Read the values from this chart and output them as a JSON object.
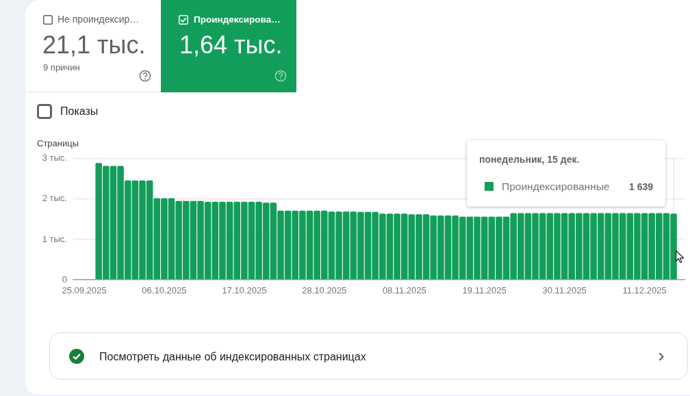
{
  "chart_data": {
    "type": "bar",
    "ylabel": "Страницы",
    "x": [
      "2025-09-27",
      "2025-09-28",
      "2025-09-29",
      "2025-09-30",
      "2025-10-01",
      "2025-10-02",
      "2025-10-03",
      "2025-10-04",
      "2025-10-05",
      "2025-10-06",
      "2025-10-07",
      "2025-10-08",
      "2025-10-09",
      "2025-10-10",
      "2025-10-11",
      "2025-10-12",
      "2025-10-13",
      "2025-10-14",
      "2025-10-15",
      "2025-10-16",
      "2025-10-17",
      "2025-10-18",
      "2025-10-19",
      "2025-10-20",
      "2025-10-21",
      "2025-10-22",
      "2025-10-23",
      "2025-10-24",
      "2025-10-25",
      "2025-10-26",
      "2025-10-27",
      "2025-10-28",
      "2025-10-29",
      "2025-10-30",
      "2025-10-31",
      "2025-11-01",
      "2025-11-02",
      "2025-11-03",
      "2025-11-04",
      "2025-11-05",
      "2025-11-06",
      "2025-11-07",
      "2025-11-08",
      "2025-11-09",
      "2025-11-10",
      "2025-11-11",
      "2025-11-12",
      "2025-11-13",
      "2025-11-14",
      "2025-11-15",
      "2025-11-16",
      "2025-11-17",
      "2025-11-18",
      "2025-11-19",
      "2025-11-20",
      "2025-11-21",
      "2025-11-22",
      "2025-11-23",
      "2025-11-24",
      "2025-11-25",
      "2025-11-26",
      "2025-11-27",
      "2025-11-28",
      "2025-11-29",
      "2025-11-30",
      "2025-12-01",
      "2025-12-02",
      "2025-12-03",
      "2025-12-04",
      "2025-12-05",
      "2025-12-06",
      "2025-12-07",
      "2025-12-08",
      "2025-12-09",
      "2025-12-10",
      "2025-12-11",
      "2025-12-12",
      "2025-12-13",
      "2025-12-14",
      "2025-12-15"
    ],
    "series": [
      {
        "name": "Проиндексированные",
        "color": "#129e5a",
        "values": [
          2.89,
          2.82,
          2.82,
          2.82,
          2.46,
          2.46,
          2.46,
          2.46,
          2.02,
          2.02,
          2.02,
          1.95,
          1.95,
          1.95,
          1.95,
          1.93,
          1.93,
          1.93,
          1.93,
          1.93,
          1.93,
          1.93,
          1.93,
          1.91,
          1.91,
          1.71,
          1.71,
          1.71,
          1.71,
          1.71,
          1.71,
          1.71,
          1.69,
          1.69,
          1.69,
          1.69,
          1.68,
          1.68,
          1.68,
          1.64,
          1.64,
          1.64,
          1.64,
          1.62,
          1.62,
          1.62,
          1.59,
          1.59,
          1.59,
          1.59,
          1.56,
          1.56,
          1.56,
          1.56,
          1.56,
          1.56,
          1.56,
          1.65,
          1.65,
          1.65,
          1.65,
          1.65,
          1.65,
          1.65,
          1.65,
          1.65,
          1.65,
          1.65,
          1.65,
          1.65,
          1.65,
          1.65,
          1.65,
          1.65,
          1.65,
          1.65,
          1.65,
          1.65,
          1.65,
          1.639
        ]
      }
    ],
    "xlim": [
      "2025-09-23T12:00",
      "2025-12-16T12:00"
    ],
    "xticks": [
      {
        "value": "2025-09-25",
        "label": "25.09.2025"
      },
      {
        "value": "2025-10-06",
        "label": "06.10.2025"
      },
      {
        "value": "2025-10-17",
        "label": "17.10.2025"
      },
      {
        "value": "2025-10-28",
        "label": "28.10.2025"
      },
      {
        "value": "2025-11-08",
        "label": "08.11.2025"
      },
      {
        "value": "2025-11-19",
        "label": "19.11.2025"
      },
      {
        "value": "2025-11-30",
        "label": "30.11.2025"
      },
      {
        "value": "2025-12-11",
        "label": "11.12.2025"
      }
    ],
    "ylim": [
      0,
      3
    ],
    "yticks": [
      0,
      {
        "value": 1,
        "label": "1 тыс."
      },
      {
        "value": 2,
        "label": "2 тыс."
      },
      {
        "value": 3,
        "label": "3 тыс."
      }
    ],
    "grid": "y",
    "legend": "top right",
    "ref_lines": [
      {
        "axis": "x",
        "value": "2025-12-15",
        "line_style": "dotted",
        "color": "#9e9e9e"
      }
    ],
    "annotations": [
      "Не проиндексир…",
      "21,1 тыс.",
      "9 причин",
      "Проиндексирова…",
      "1,64 тыс.",
      "Показы",
      "Посмотреть данные об индексированных страницах",
      "понедельник, 15 дек.",
      "1 639"
    ]
  }
}
